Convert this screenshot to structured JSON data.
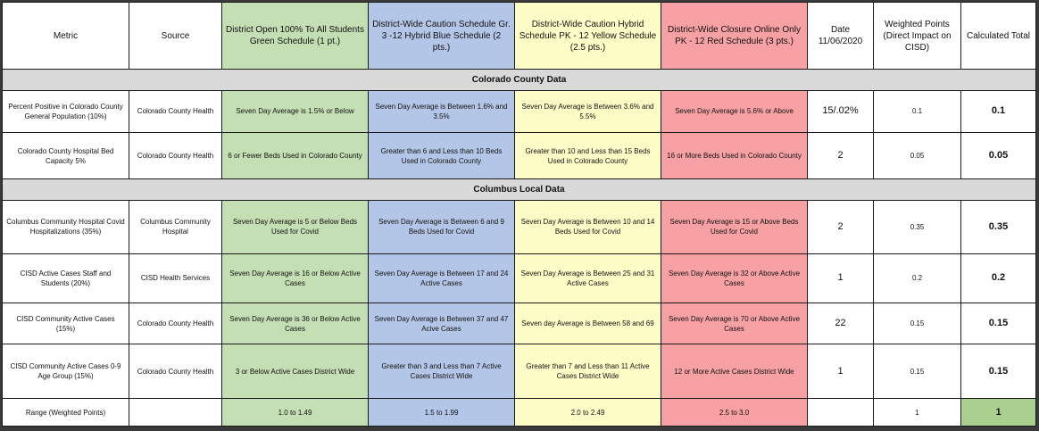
{
  "headers": {
    "metric": "Metric",
    "source": "Source",
    "green": "District Open 100% To All Students Green Schedule (1 pt.)",
    "blue": "District-Wide Caution Schedule Gr. 3 -12 Hybrid Blue Schedule (2 pts.)",
    "yellow": "District-Wide Caution Hybrid Schedule PK - 12 Yellow Schedule (2.5 pts.)",
    "red": "District-Wide Closure Online Only PK - 12 Red Schedule (3 pts.)",
    "date": "Date 11/06/2020",
    "weighted": "Weighted Points (Direct Impact on CISD)",
    "total": "Calculated Total"
  },
  "sections": {
    "colorado": "Colorado County Data",
    "columbus": "Columbus Local Data"
  },
  "rows": [
    {
      "metric": "Percent Positive in Colorado County General Population (10%)",
      "source": "Colorado County Health",
      "green": "Seven Day Average is 1.5% or Below",
      "blue": "Seven Day Average is Between 1.6% and 3.5%",
      "yellow": "Seven Day Average is Between 3.6% and 5.5%",
      "red": "Seven Day Average is 5.6% or Above",
      "date": "15/.02%",
      "weighted": "0.1",
      "total": "0.1"
    },
    {
      "metric": "Colorado County Hospital Bed Capacity 5%",
      "source": "Colorado County Health",
      "green": "6 or Fewer Beds Used in Colorado County",
      "blue": "Greater than 6 and Less than 10 Beds Used in Colorado County",
      "yellow": "Greater than 10 and Less than 15 Beds Used in Colorado County",
      "red": "16 or More Beds Used in Colorado County",
      "date": "2",
      "weighted": "0.05",
      "total": "0.05"
    },
    {
      "metric": "Columbus Community Hospital Covid Hospitalizations (35%)",
      "source": "Columbus Community Hospital",
      "green": "Seven Day Average is 5 or Below Beds Used for Covid",
      "blue": "Seven Day Average is Between 6 and 9 Beds Used for Covid",
      "yellow": "Seven Day Average is Between 10 and 14 Beds Used for Covid",
      "red": "Seven Day Average is 15 or Above Beds Used for Covid",
      "date": "2",
      "weighted": "0.35",
      "total": "0.35"
    },
    {
      "metric": "CISD Active Cases Staff and Students (20%)",
      "source": "CISD Health Services",
      "green": "Seven Day Average is 16 or Below Active Cases",
      "blue": "Seven Day Average is Between 17 and 24 Active Cases",
      "yellow": "Seven Day Average is Between 25 and 31 Active Cases",
      "red": "Seven Day Average is 32 or Above Active Cases",
      "date": "1",
      "weighted": "0.2",
      "total": "0.2"
    },
    {
      "metric": "CISD Community Active Cases (15%)",
      "source": "Colorado County Health",
      "green": "Seven Day Average is 36 or Below Active Cases",
      "blue": "Seven Day Average is Between 37 and 47 Acive Cases",
      "yellow": "Seven day Average is Between 58 and 69",
      "red": "Seven Day Average is 70 or Above Active Cases",
      "date": "22",
      "weighted": "0.15",
      "total": "0.15"
    },
    {
      "metric": "CISD Community Active Cases 0-9 Age Group (15%)",
      "source": "Colorado County Health",
      "green": "3 or Below Active Cases District Wide",
      "blue": "Greater than 3 and Less than 7 Active Cases District Wide",
      "yellow": "Greater than 7 and Less than 11 Active Cases District Wide",
      "red": "12 or More Active Cases District Wide",
      "date": "1",
      "weighted": "0.15",
      "total": "0.15"
    }
  ],
  "range": {
    "metric": "Range (Weighted Points)",
    "source": "",
    "green": "1.0 to 1.49",
    "blue": "1.5 to 1.99",
    "yellow": "2.0 to 2.49",
    "red": "2.5 to 3.0",
    "date": "",
    "weighted": "1",
    "total": "1"
  },
  "colors": {
    "green": "#c4dfb3",
    "blue": "#b4c6e7",
    "yellow": "#fefdc8",
    "red": "#f7a1a4",
    "section": "#d9d9d9",
    "total_highlight": "#a9d08e"
  }
}
